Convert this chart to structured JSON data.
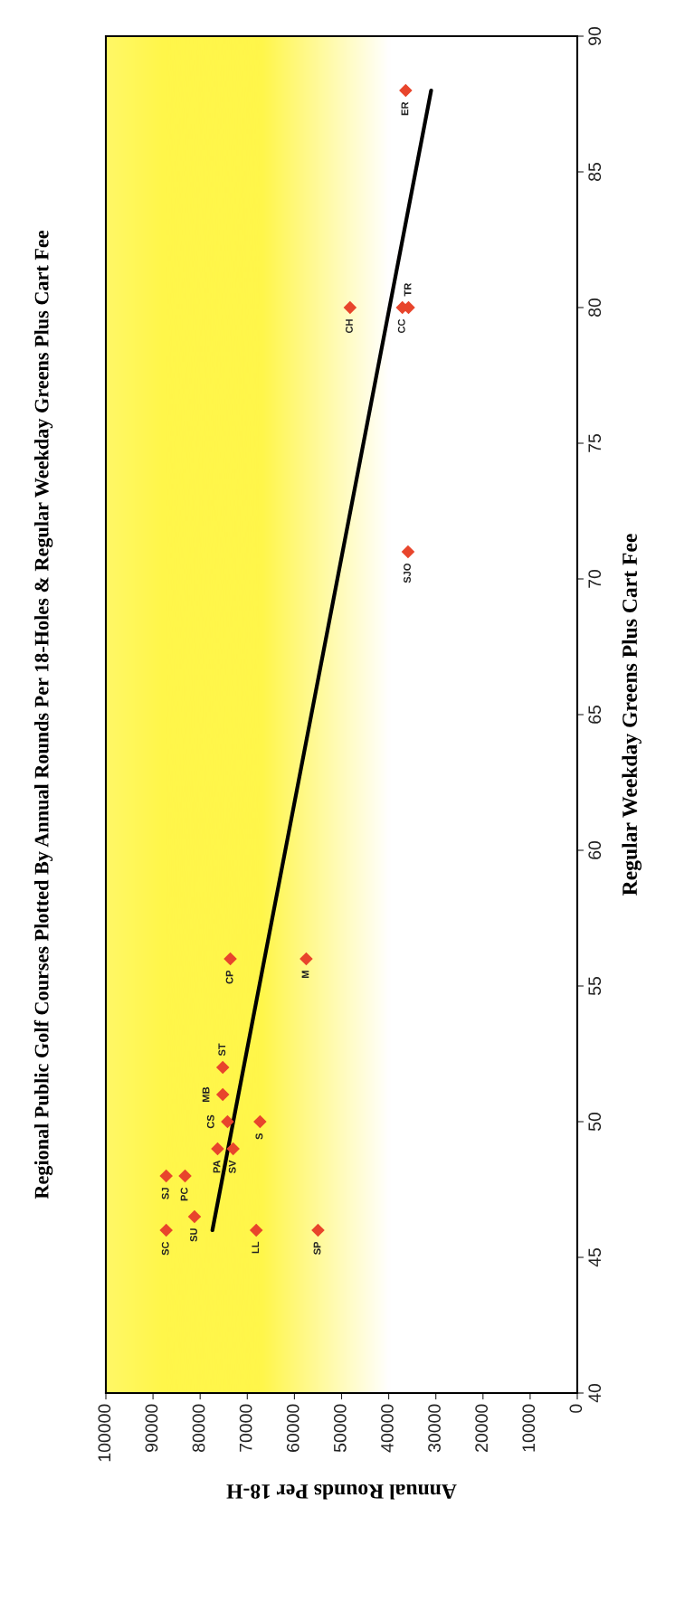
{
  "chart_data": {
    "type": "scatter",
    "title": "Regional Public Golf Courses Plotted By Annual Rounds Per 18-Holes & Regular Weekday Greens Plus Cart Fee",
    "xlabel": "Annual Rounds Per 18-H",
    "ylabel": "Regular Weekday Greens Plus Cart Fee",
    "series": [
      {
        "color": "#e8452c",
        "x": [
          87200,
          81200,
          68100,
          55000,
          87200,
          83200,
          76300,
          73000,
          74200,
          67300,
          75200,
          75200,
          73600,
          57500,
          35900,
          48200,
          37100,
          35800,
          36400
        ],
        "values": [
          46,
          46.5,
          46,
          46,
          48,
          48,
          49,
          49,
          50,
          50,
          51,
          52,
          56,
          56,
          71,
          80,
          80,
          80,
          88
        ]
      },
      {
        "type": "line",
        "marker": "none",
        "color": "#000000",
        "x": [
          77400,
          31000
        ],
        "values": [
          46,
          88
        ]
      }
    ],
    "annotations": [
      {
        "text": "SC",
        "x": 87200,
        "y": 46
      },
      {
        "text": "SU",
        "x": 81200,
        "y": 46.5
      },
      {
        "text": "LL",
        "x": 68100,
        "y": 46
      },
      {
        "text": "SP",
        "x": 55000,
        "y": 46
      },
      {
        "text": "SJ",
        "x": 87200,
        "y": 48
      },
      {
        "text": "PC",
        "x": 83200,
        "y": 48
      },
      {
        "text": "PA",
        "x": 76300,
        "y": 49
      },
      {
        "text": "SV",
        "x": 73000,
        "y": 49
      },
      {
        "text": "CS",
        "x": 74200,
        "y": 50
      },
      {
        "text": "S",
        "x": 67300,
        "y": 50
      },
      {
        "text": "MB",
        "x": 75200,
        "y": 51
      },
      {
        "text": "ST",
        "x": 75200,
        "y": 52
      },
      {
        "text": "CP",
        "x": 73600,
        "y": 56
      },
      {
        "text": "M",
        "x": 57500,
        "y": 56
      },
      {
        "text": "SJO",
        "x": 35900,
        "y": 71
      },
      {
        "text": "CH",
        "x": 48200,
        "y": 80
      },
      {
        "text": "CC",
        "x": 37100,
        "y": 80
      },
      {
        "text": "TR",
        "x": 35800,
        "y": 80
      },
      {
        "text": "ER",
        "x": 36400,
        "y": 88
      }
    ],
    "xlim": [
      100000,
      0
    ],
    "xticks": [
      0,
      10000,
      20000,
      30000,
      40000,
      50000,
      60000,
      70000,
      80000,
      90000,
      100000
    ],
    "ylim": [
      40,
      90
    ],
    "yticks": [
      40,
      45,
      50,
      55,
      60,
      65,
      70,
      75,
      80,
      85,
      90
    ],
    "marker": "diamond",
    "grid": false
  }
}
